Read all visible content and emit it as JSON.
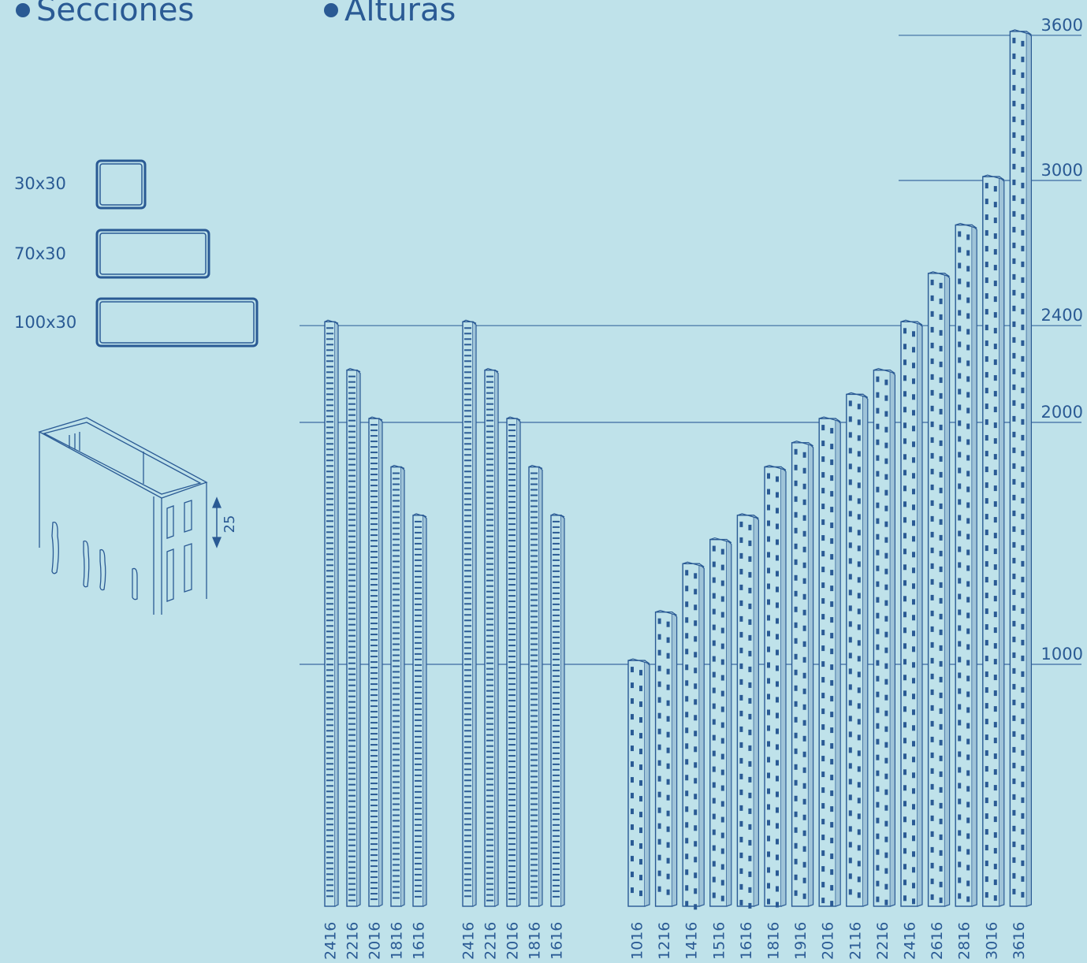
{
  "colors": {
    "background": "#bfe2ea",
    "ink": "#2a5a94",
    "line": "#3a6aa0"
  },
  "headings": {
    "secciones": "Secciones",
    "alturas": "Alturas",
    "bullet": "bullet-dot-icon"
  },
  "sections": [
    {
      "label": "30x30",
      "w": 30,
      "h": 30
    },
    {
      "label": "70x30",
      "w": 70,
      "h": 30
    },
    {
      "label": "100x30",
      "w": 100,
      "h": 30
    }
  ],
  "detail": {
    "dimension": "25"
  },
  "reference_heights": [
    {
      "value": 3600,
      "label": "3600"
    },
    {
      "value": 3000,
      "label": "3000"
    },
    {
      "value": 2400,
      "label": "2400"
    },
    {
      "value": 2000,
      "label": "2000"
    },
    {
      "value": 1000,
      "label": "1000"
    }
  ],
  "chart_data": {
    "type": "bar",
    "groups": [
      {
        "profile": "30x30",
        "heights": [
          2416,
          2216,
          2016,
          1816,
          1616
        ]
      },
      {
        "profile": "70x30",
        "heights": [
          2416,
          2216,
          2016,
          1816,
          1616
        ]
      },
      {
        "profile": "100x30",
        "heights": [
          1016,
          1216,
          1416,
          1516,
          1616,
          1816,
          1916,
          2016,
          2116,
          2216,
          2416,
          2616,
          2816,
          3016,
          3616
        ]
      }
    ],
    "ylim": [
      0,
      3600
    ]
  }
}
